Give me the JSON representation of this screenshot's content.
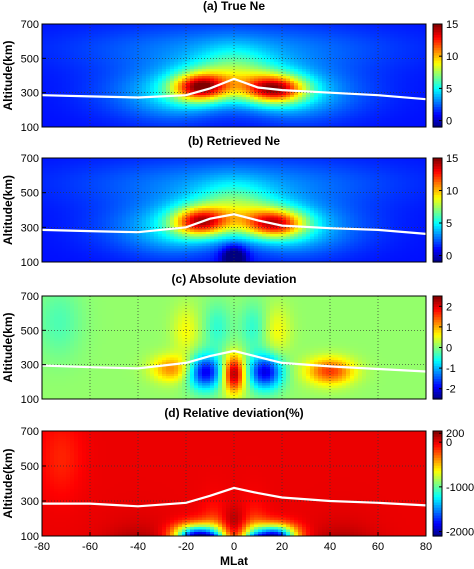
{
  "chart_data": [
    {
      "type": "heatmap",
      "title": "(a) True Ne",
      "ylabel": "Altitude(km)",
      "xlabel": "",
      "xlim": [
        -80,
        80
      ],
      "ylim": [
        100,
        700
      ],
      "y_ticks": [
        "100",
        "300",
        "500",
        "700"
      ],
      "colorbar": {
        "ticks": [
          "0",
          "5",
          "10",
          "15"
        ],
        "vmin": -1,
        "vmax": 15
      },
      "grid": true,
      "field_description": "double crest",
      "white_line": {
        "x": [
          -80,
          -60,
          -40,
          -20,
          -10,
          0,
          10,
          20,
          40,
          60,
          80
        ],
        "y": [
          285,
          278,
          272,
          285,
          325,
          380,
          330,
          315,
          300,
          285,
          262
        ]
      }
    },
    {
      "type": "heatmap",
      "title": "(b) Retrieved Ne",
      "ylabel": "Altitude(km)",
      "xlabel": "",
      "xlim": [
        -80,
        80
      ],
      "ylim": [
        100,
        700
      ],
      "y_ticks": [
        "100",
        "300",
        "500",
        "700"
      ],
      "colorbar": {
        "ticks": [
          "0",
          "5",
          "10",
          "15"
        ],
        "vmin": -1,
        "vmax": 15
      },
      "grid": true,
      "field_description": "smooth double crest",
      "white_line": {
        "x": [
          -80,
          -60,
          -40,
          -20,
          -10,
          0,
          10,
          20,
          40,
          60,
          80
        ],
        "y": [
          285,
          278,
          272,
          300,
          350,
          375,
          340,
          310,
          295,
          285,
          262
        ]
      }
    },
    {
      "type": "heatmap",
      "title": "(c) Absolute deviation",
      "ylabel": "Altitude(km)",
      "xlabel": "",
      "xlim": [
        -80,
        80
      ],
      "ylim": [
        100,
        700
      ],
      "y_ticks": [
        "100",
        "300",
        "500",
        "700"
      ],
      "colorbar": {
        "ticks": [
          "2",
          "1",
          "0",
          "-1",
          "-2"
        ],
        "vmin": -2.5,
        "vmax": 2.5
      },
      "grid": true,
      "field_description": "absolute deviation",
      "white_line": {
        "x": [
          -80,
          -60,
          -40,
          -20,
          -10,
          0,
          10,
          20,
          40,
          60,
          80
        ],
        "y": [
          295,
          285,
          278,
          310,
          350,
          380,
          345,
          310,
          290,
          275,
          260
        ]
      }
    },
    {
      "type": "heatmap",
      "title": "(d) Relative deviation(%)",
      "ylabel": "Altitude(km)",
      "xlabel": "MLat",
      "xlim": [
        -80,
        80
      ],
      "ylim": [
        100,
        700
      ],
      "y_ticks": [
        "100",
        "300",
        "500",
        "700"
      ],
      "x_ticks": [
        "-80",
        "-60",
        "-40",
        "-20",
        "0",
        "20",
        "40",
        "60",
        "80"
      ],
      "colorbar": {
        "ticks": [
          "200",
          "0",
          "-1000",
          "-2000"
        ],
        "vmin": -2100,
        "vmax": 250
      },
      "grid": true,
      "field_description": "relative deviation",
      "white_line": {
        "x": [
          -80,
          -60,
          -40,
          -20,
          -10,
          0,
          10,
          20,
          40,
          60,
          80
        ],
        "y": [
          285,
          285,
          270,
          290,
          330,
          375,
          345,
          320,
          300,
          290,
          275
        ]
      }
    }
  ]
}
